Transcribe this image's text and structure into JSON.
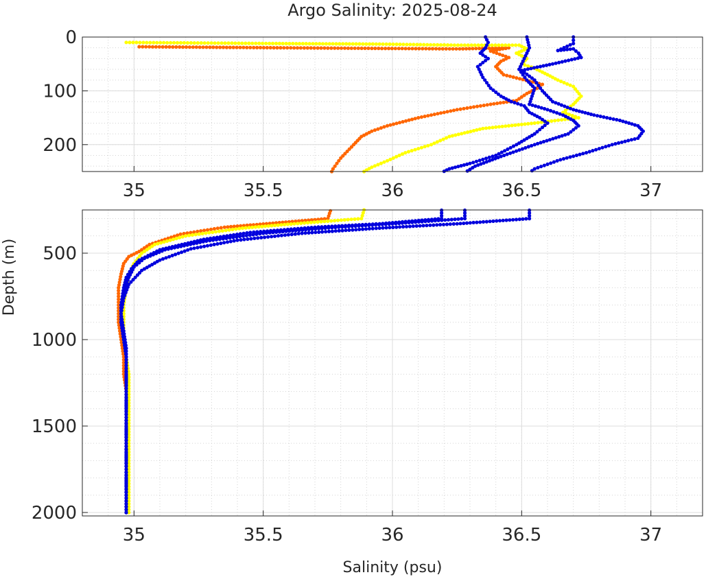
{
  "chart_data": {
    "type": "scatter",
    "title": "Argo Salinity: 2025-08-24",
    "xlabel": "Salinity (psu)",
    "ylabel": "Depth (m)",
    "grid": true,
    "minor_grid": true,
    "y_reversed": true,
    "colors": {
      "profile_1": "#ff6600",
      "profile_2": "#ffff00",
      "profile_3": "#0000dd",
      "profile_4": "#0000dd",
      "profile_5": "#0000dd"
    },
    "panels": [
      {
        "xlim": [
          34.8,
          37.2
        ],
        "ylim": [
          0,
          250
        ],
        "xticks": [
          35,
          35.5,
          36,
          36.5,
          37
        ],
        "xtick_labels": [
          "35",
          "35.5",
          "36",
          "36.5",
          "37"
        ],
        "yticks": [
          0,
          100,
          200
        ],
        "ytick_labels": [
          "0",
          "100",
          "200"
        ]
      },
      {
        "xlim": [
          34.8,
          37.2
        ],
        "ylim": [
          250,
          2020
        ],
        "xticks": [
          35,
          35.5,
          36,
          36.5,
          37
        ],
        "xtick_labels": [
          "35",
          "35.5",
          "36",
          "36.5",
          "37"
        ],
        "yticks": [
          500,
          1000,
          1500,
          2000
        ],
        "ytick_labels": [
          "500",
          "1000",
          "1500",
          "2000"
        ]
      }
    ],
    "series": [
      {
        "color": "#ff6600",
        "points": [
          [
            35.02,
            18
          ],
          [
            35.58,
            20
          ],
          [
            36.26,
            22
          ],
          [
            36.45,
            20
          ],
          [
            36.38,
            26
          ],
          [
            36.45,
            38
          ],
          [
            36.42,
            45
          ],
          [
            36.4,
            55
          ],
          [
            36.43,
            70
          ],
          [
            36.58,
            88
          ],
          [
            36.56,
            95
          ],
          [
            36.52,
            105
          ],
          [
            36.48,
            118
          ],
          [
            36.38,
            125
          ],
          [
            36.25,
            135
          ],
          [
            36.1,
            150
          ],
          [
            35.98,
            165
          ],
          [
            35.92,
            175
          ],
          [
            35.88,
            185
          ],
          [
            35.85,
            200
          ],
          [
            35.8,
            225
          ],
          [
            35.77,
            245
          ],
          [
            35.76,
            255
          ],
          [
            35.75,
            300
          ],
          [
            35.55,
            325
          ],
          [
            35.35,
            350
          ],
          [
            35.18,
            390
          ],
          [
            35.06,
            450
          ],
          [
            35.02,
            490
          ],
          [
            34.98,
            520
          ],
          [
            34.96,
            560
          ],
          [
            34.95,
            620
          ],
          [
            34.94,
            700
          ],
          [
            34.94,
            800
          ],
          [
            34.94,
            900
          ],
          [
            34.95,
            1000
          ],
          [
            34.96,
            1100
          ],
          [
            34.96,
            1200
          ],
          [
            34.97,
            1300
          ],
          [
            34.97,
            1400
          ],
          [
            34.97,
            1500
          ],
          [
            34.97,
            1600
          ],
          [
            34.97,
            1700
          ],
          [
            34.97,
            1800
          ],
          [
            34.97,
            1900
          ],
          [
            34.97,
            2000
          ]
        ]
      },
      {
        "color": "#ffff00",
        "points": [
          [
            34.97,
            10
          ],
          [
            35.55,
            12
          ],
          [
            35.95,
            13
          ],
          [
            36.24,
            15
          ],
          [
            36.49,
            15
          ],
          [
            36.52,
            22
          ],
          [
            36.48,
            30
          ],
          [
            36.52,
            40
          ],
          [
            36.5,
            50
          ],
          [
            36.55,
            58
          ],
          [
            36.6,
            70
          ],
          [
            36.64,
            80
          ],
          [
            36.7,
            92
          ],
          [
            36.73,
            110
          ],
          [
            36.7,
            125
          ],
          [
            36.66,
            140
          ],
          [
            36.72,
            150
          ],
          [
            36.55,
            160
          ],
          [
            36.35,
            170
          ],
          [
            36.22,
            185
          ],
          [
            36.15,
            200
          ],
          [
            36.05,
            215
          ],
          [
            35.98,
            230
          ],
          [
            35.92,
            242
          ],
          [
            35.89,
            250
          ],
          [
            35.88,
            300
          ],
          [
            35.62,
            330
          ],
          [
            35.42,
            355
          ],
          [
            35.2,
            400
          ],
          [
            35.08,
            450
          ],
          [
            35.03,
            500
          ],
          [
            35.0,
            560
          ],
          [
            34.98,
            620
          ],
          [
            34.97,
            700
          ],
          [
            34.96,
            800
          ],
          [
            34.96,
            900
          ],
          [
            34.96,
            1000
          ],
          [
            34.97,
            1100
          ],
          [
            34.98,
            1200
          ],
          [
            34.98,
            1300
          ],
          [
            34.98,
            1400
          ],
          [
            34.98,
            1500
          ],
          [
            34.98,
            1600
          ],
          [
            34.98,
            1700
          ],
          [
            34.98,
            1800
          ],
          [
            34.98,
            1900
          ],
          [
            34.98,
            2000
          ]
        ]
      },
      {
        "color": "#0000dd",
        "points": [
          [
            36.36,
            0
          ],
          [
            36.37,
            10
          ],
          [
            36.36,
            20
          ],
          [
            36.34,
            30
          ],
          [
            36.37,
            40
          ],
          [
            36.33,
            55
          ],
          [
            36.35,
            75
          ],
          [
            36.38,
            95
          ],
          [
            36.42,
            110
          ],
          [
            36.46,
            120
          ],
          [
            36.51,
            128
          ],
          [
            36.53,
            140
          ],
          [
            36.57,
            150
          ],
          [
            36.6,
            160
          ],
          [
            36.55,
            180
          ],
          [
            36.48,
            200
          ],
          [
            36.4,
            220
          ],
          [
            36.3,
            235
          ],
          [
            36.22,
            245
          ],
          [
            36.19,
            252
          ],
          [
            36.19,
            300
          ],
          [
            35.95,
            330
          ],
          [
            35.7,
            350
          ],
          [
            35.45,
            380
          ],
          [
            35.27,
            420
          ],
          [
            35.1,
            480
          ],
          [
            35.02,
            540
          ],
          [
            34.99,
            590
          ],
          [
            34.97,
            640
          ],
          [
            34.96,
            700
          ],
          [
            34.95,
            800
          ],
          [
            34.95,
            900
          ],
          [
            34.96,
            1000
          ],
          [
            34.97,
            1100
          ],
          [
            34.97,
            1200
          ],
          [
            34.97,
            1300
          ],
          [
            34.97,
            1400
          ],
          [
            34.97,
            1500
          ],
          [
            34.97,
            1600
          ],
          [
            34.97,
            1700
          ],
          [
            34.97,
            1800
          ],
          [
            34.97,
            1900
          ],
          [
            34.97,
            2000
          ]
        ]
      },
      {
        "color": "#0000dd",
        "points": [
          [
            36.52,
            0
          ],
          [
            36.53,
            20
          ],
          [
            36.51,
            40
          ],
          [
            36.49,
            60
          ],
          [
            36.52,
            80
          ],
          [
            36.55,
            95
          ],
          [
            36.54,
            110
          ],
          [
            36.53,
            125
          ],
          [
            36.6,
            135
          ],
          [
            36.66,
            145
          ],
          [
            36.7,
            155
          ],
          [
            36.72,
            165
          ],
          [
            36.68,
            180
          ],
          [
            36.55,
            200
          ],
          [
            36.42,
            222
          ],
          [
            36.32,
            240
          ],
          [
            36.28,
            252
          ],
          [
            36.28,
            300
          ],
          [
            36.0,
            330
          ],
          [
            35.74,
            355
          ],
          [
            35.5,
            385
          ],
          [
            35.28,
            430
          ],
          [
            35.12,
            480
          ],
          [
            35.04,
            530
          ],
          [
            35.0,
            580
          ],
          [
            34.98,
            640
          ],
          [
            34.96,
            720
          ],
          [
            34.95,
            800
          ],
          [
            34.95,
            900
          ],
          [
            34.96,
            1000
          ],
          [
            34.97,
            1100
          ],
          [
            34.97,
            1200
          ],
          [
            34.97,
            1300
          ],
          [
            34.97,
            1400
          ],
          [
            34.97,
            1500
          ],
          [
            34.97,
            1600
          ],
          [
            34.97,
            1700
          ],
          [
            34.97,
            1800
          ],
          [
            34.97,
            1900
          ],
          [
            34.97,
            2000
          ]
        ]
      },
      {
        "color": "#0000dd",
        "points": [
          [
            36.7,
            0
          ],
          [
            36.7,
            12
          ],
          [
            36.64,
            25
          ],
          [
            36.7,
            22
          ],
          [
            36.72,
            30
          ],
          [
            36.73,
            38
          ],
          [
            36.62,
            50
          ],
          [
            36.5,
            62
          ],
          [
            36.55,
            80
          ],
          [
            36.58,
            100
          ],
          [
            36.62,
            120
          ],
          [
            36.7,
            135
          ],
          [
            36.78,
            145
          ],
          [
            36.88,
            155
          ],
          [
            36.95,
            165
          ],
          [
            36.97,
            175
          ],
          [
            36.95,
            188
          ],
          [
            36.85,
            200
          ],
          [
            36.75,
            215
          ],
          [
            36.65,
            228
          ],
          [
            36.55,
            245
          ],
          [
            36.53,
            252
          ],
          [
            36.53,
            300
          ],
          [
            36.25,
            330
          ],
          [
            35.95,
            355
          ],
          [
            35.65,
            385
          ],
          [
            35.4,
            425
          ],
          [
            35.22,
            475
          ],
          [
            35.1,
            540
          ],
          [
            35.03,
            600
          ],
          [
            34.98,
            680
          ],
          [
            34.96,
            760
          ],
          [
            34.95,
            850
          ],
          [
            34.96,
            950
          ],
          [
            34.97,
            1050
          ],
          [
            34.97,
            1150
          ],
          [
            34.97,
            1300
          ],
          [
            34.97,
            1450
          ],
          [
            34.97,
            1600
          ],
          [
            34.97,
            1750
          ],
          [
            34.97,
            1900
          ],
          [
            34.97,
            2000
          ]
        ]
      }
    ]
  }
}
